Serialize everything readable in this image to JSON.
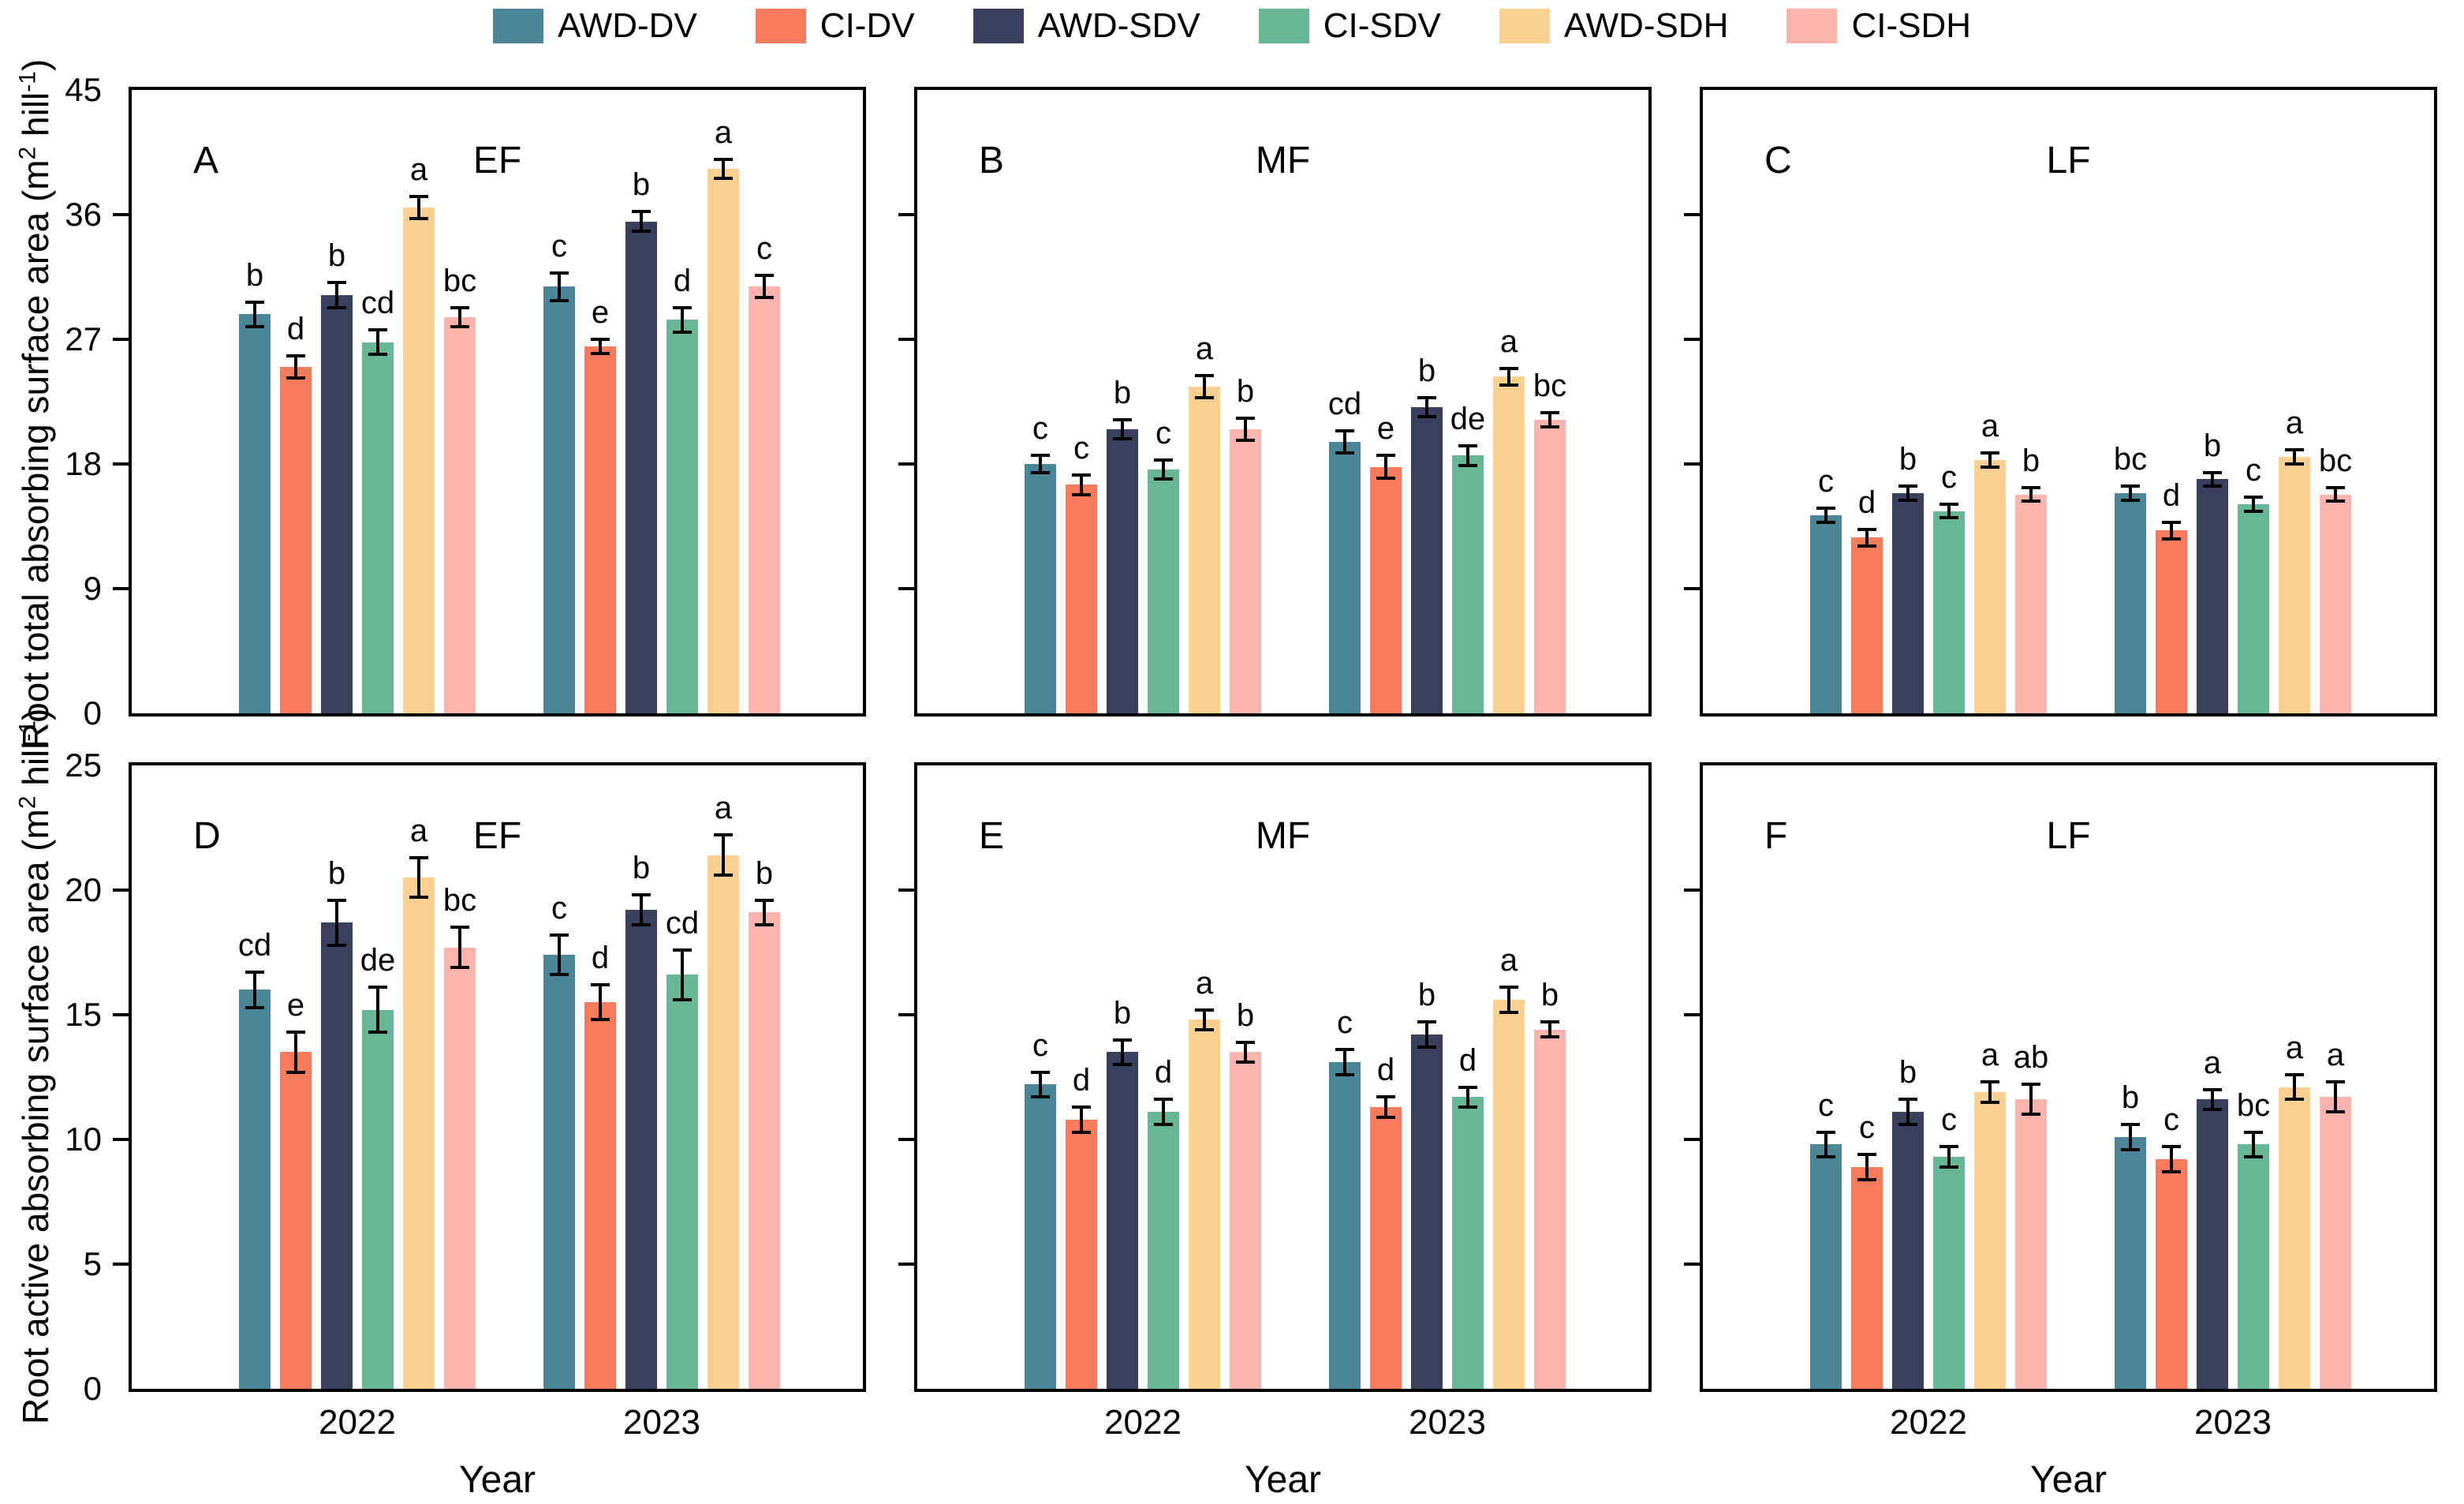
{
  "legend": {
    "items": [
      {
        "label": "AWD-DV",
        "color": "#4A8697"
      },
      {
        "label": "CI-DV",
        "color": "#FA7B5D"
      },
      {
        "label": "AWD-SDV",
        "color": "#3A3F5D"
      },
      {
        "label": "CI-SDV",
        "color": "#67B696"
      },
      {
        "label": "AWD-SDH",
        "color": "#FCD091"
      },
      {
        "label": "CI-SDH",
        "color": "#FDB3AD"
      }
    ]
  },
  "axes": {
    "xlabel": "Year",
    "categories": [
      "2022",
      "2023"
    ],
    "top_row": {
      "ylabel_parts": [
        [
          "Root total absorbing surface area (m",
          ""
        ],
        [
          "2",
          "sup"
        ],
        [
          " hill",
          ""
        ],
        [
          "-1",
          "sup"
        ],
        [
          ")",
          ""
        ]
      ],
      "ymax": 45,
      "yticks": [
        0,
        9,
        18,
        27,
        36,
        45
      ]
    },
    "bottom_row": {
      "ylabel_parts": [
        [
          "Root active absorbing surface area (m",
          ""
        ],
        [
          "2",
          "sup"
        ],
        [
          " hill",
          ""
        ],
        [
          "-1",
          "sup"
        ],
        [
          ")",
          ""
        ]
      ],
      "ymax": 25,
      "yticks": [
        0,
        5,
        10,
        15,
        20,
        25
      ]
    }
  },
  "chart_data": [
    {
      "type": "bar",
      "panel_label": "A",
      "group_label": "EF",
      "row": "top",
      "col": 0,
      "ymax": 45,
      "yticks": [
        0,
        9,
        18,
        27,
        36,
        45
      ],
      "show_ytick_labels": true,
      "categories": [
        "2022",
        "2023"
      ],
      "legend_position": "top-center-of-figure",
      "grid": false,
      "series": [
        {
          "name": "AWD-DV",
          "values": [
            28.8,
            30.8
          ],
          "errors": [
            0.9,
            1.0
          ],
          "letters": [
            "b",
            "c"
          ]
        },
        {
          "name": "CI-DV",
          "values": [
            25.0,
            26.5
          ],
          "errors": [
            0.8,
            0.5
          ],
          "letters": [
            "d",
            "e"
          ]
        },
        {
          "name": "AWD-SDV",
          "values": [
            30.2,
            35.5
          ],
          "errors": [
            0.9,
            0.7
          ],
          "letters": [
            "b",
            "b"
          ]
        },
        {
          "name": "CI-SDV",
          "values": [
            26.8,
            28.4
          ],
          "errors": [
            0.9,
            0.9
          ],
          "letters": [
            "cd",
            "d"
          ]
        },
        {
          "name": "AWD-SDH",
          "values": [
            36.5,
            39.3
          ],
          "errors": [
            0.8,
            0.7
          ],
          "letters": [
            "a",
            "a"
          ]
        },
        {
          "name": "CI-SDH",
          "values": [
            28.6,
            30.8
          ],
          "errors": [
            0.7,
            0.8
          ],
          "letters": [
            "bc",
            "c"
          ]
        }
      ]
    },
    {
      "type": "bar",
      "panel_label": "B",
      "group_label": "MF",
      "row": "top",
      "col": 1,
      "ymax": 45,
      "yticks": [
        0,
        9,
        18,
        27,
        36,
        45
      ],
      "show_ytick_labels": false,
      "categories": [
        "2022",
        "2023"
      ],
      "grid": false,
      "series": [
        {
          "name": "AWD-DV",
          "values": [
            18.0,
            19.6
          ],
          "errors": [
            0.6,
            0.8
          ],
          "letters": [
            "c",
            "cd"
          ]
        },
        {
          "name": "CI-DV",
          "values": [
            16.5,
            17.8
          ],
          "errors": [
            0.7,
            0.8
          ],
          "letters": [
            "c",
            "e"
          ]
        },
        {
          "name": "AWD-SDV",
          "values": [
            20.5,
            22.1
          ],
          "errors": [
            0.7,
            0.7
          ],
          "letters": [
            "b",
            "b"
          ]
        },
        {
          "name": "CI-SDV",
          "values": [
            17.6,
            18.6
          ],
          "errors": [
            0.7,
            0.7
          ],
          "letters": [
            "c",
            "de"
          ]
        },
        {
          "name": "AWD-SDH",
          "values": [
            23.6,
            24.3
          ],
          "errors": [
            0.8,
            0.6
          ],
          "letters": [
            "a",
            "a"
          ]
        },
        {
          "name": "CI-SDH",
          "values": [
            20.5,
            21.2
          ],
          "errors": [
            0.8,
            0.5
          ],
          "letters": [
            "b",
            "bc"
          ]
        }
      ]
    },
    {
      "type": "bar",
      "panel_label": "C",
      "group_label": "LF",
      "row": "top",
      "col": 2,
      "ymax": 45,
      "yticks": [
        0,
        9,
        18,
        27,
        36,
        45
      ],
      "show_ytick_labels": false,
      "categories": [
        "2022",
        "2023"
      ],
      "grid": false,
      "series": [
        {
          "name": "AWD-DV",
          "values": [
            14.3,
            15.9
          ],
          "errors": [
            0.5,
            0.5
          ],
          "letters": [
            "c",
            "bc"
          ]
        },
        {
          "name": "CI-DV",
          "values": [
            12.7,
            13.2
          ],
          "errors": [
            0.6,
            0.6
          ],
          "letters": [
            "d",
            "d"
          ]
        },
        {
          "name": "AWD-SDV",
          "values": [
            15.9,
            16.9
          ],
          "errors": [
            0.5,
            0.5
          ],
          "letters": [
            "b",
            "b"
          ]
        },
        {
          "name": "CI-SDV",
          "values": [
            14.6,
            15.1
          ],
          "errors": [
            0.5,
            0.5
          ],
          "letters": [
            "c",
            "c"
          ]
        },
        {
          "name": "AWD-SDH",
          "values": [
            18.3,
            18.5
          ],
          "errors": [
            0.5,
            0.5
          ],
          "letters": [
            "a",
            "a"
          ]
        },
        {
          "name": "CI-SDH",
          "values": [
            15.8,
            15.8
          ],
          "errors": [
            0.5,
            0.5
          ],
          "letters": [
            "b",
            "bc"
          ]
        }
      ]
    },
    {
      "type": "bar",
      "panel_label": "D",
      "group_label": "EF",
      "row": "bottom",
      "col": 0,
      "ymax": 25,
      "yticks": [
        0,
        5,
        10,
        15,
        20,
        25
      ],
      "show_ytick_labels": true,
      "categories": [
        "2022",
        "2023"
      ],
      "grid": false,
      "series": [
        {
          "name": "AWD-DV",
          "values": [
            16.0,
            17.4
          ],
          "errors": [
            0.7,
            0.8
          ],
          "letters": [
            "cd",
            "c"
          ]
        },
        {
          "name": "CI-DV",
          "values": [
            13.5,
            15.5
          ],
          "errors": [
            0.8,
            0.7
          ],
          "letters": [
            "e",
            "d"
          ]
        },
        {
          "name": "AWD-SDV",
          "values": [
            18.7,
            19.2
          ],
          "errors": [
            0.9,
            0.6
          ],
          "letters": [
            "b",
            "b"
          ]
        },
        {
          "name": "CI-SDV",
          "values": [
            15.2,
            16.6
          ],
          "errors": [
            0.9,
            1.0
          ],
          "letters": [
            "de",
            "cd"
          ]
        },
        {
          "name": "AWD-SDH",
          "values": [
            20.5,
            21.4
          ],
          "errors": [
            0.8,
            0.8
          ],
          "letters": [
            "a",
            "a"
          ]
        },
        {
          "name": "CI-SDH",
          "values": [
            17.7,
            19.1
          ],
          "errors": [
            0.8,
            0.5
          ],
          "letters": [
            "bc",
            "b"
          ]
        }
      ]
    },
    {
      "type": "bar",
      "panel_label": "E",
      "group_label": "MF",
      "row": "bottom",
      "col": 1,
      "ymax": 25,
      "yticks": [
        0,
        5,
        10,
        15,
        20,
        25
      ],
      "show_ytick_labels": false,
      "categories": [
        "2022",
        "2023"
      ],
      "grid": false,
      "series": [
        {
          "name": "AWD-DV",
          "values": [
            12.2,
            13.1
          ],
          "errors": [
            0.5,
            0.5
          ],
          "letters": [
            "c",
            "c"
          ]
        },
        {
          "name": "CI-DV",
          "values": [
            10.8,
            11.3
          ],
          "errors": [
            0.5,
            0.4
          ],
          "letters": [
            "d",
            "d"
          ]
        },
        {
          "name": "AWD-SDV",
          "values": [
            13.5,
            14.2
          ],
          "errors": [
            0.5,
            0.5
          ],
          "letters": [
            "b",
            "b"
          ]
        },
        {
          "name": "CI-SDV",
          "values": [
            11.1,
            11.7
          ],
          "errors": [
            0.5,
            0.4
          ],
          "letters": [
            "d",
            "d"
          ]
        },
        {
          "name": "AWD-SDH",
          "values": [
            14.8,
            15.6
          ],
          "errors": [
            0.4,
            0.5
          ],
          "letters": [
            "a",
            "a"
          ]
        },
        {
          "name": "CI-SDH",
          "values": [
            13.5,
            14.4
          ],
          "errors": [
            0.4,
            0.3
          ],
          "letters": [
            "b",
            "b"
          ]
        }
      ]
    },
    {
      "type": "bar",
      "panel_label": "F",
      "group_label": "LF",
      "row": "bottom",
      "col": 2,
      "ymax": 25,
      "yticks": [
        0,
        5,
        10,
        15,
        20,
        25
      ],
      "show_ytick_labels": false,
      "categories": [
        "2022",
        "2023"
      ],
      "grid": false,
      "series": [
        {
          "name": "AWD-DV",
          "values": [
            9.8,
            10.1
          ],
          "errors": [
            0.5,
            0.5
          ],
          "letters": [
            "c",
            "b"
          ]
        },
        {
          "name": "CI-DV",
          "values": [
            8.9,
            9.2
          ],
          "errors": [
            0.5,
            0.5
          ],
          "letters": [
            "c",
            "c"
          ]
        },
        {
          "name": "AWD-SDV",
          "values": [
            11.1,
            11.6
          ],
          "errors": [
            0.5,
            0.4
          ],
          "letters": [
            "b",
            "a"
          ]
        },
        {
          "name": "CI-SDV",
          "values": [
            9.3,
            9.8
          ],
          "errors": [
            0.4,
            0.5
          ],
          "letters": [
            "c",
            "bc"
          ]
        },
        {
          "name": "AWD-SDH",
          "values": [
            11.9,
            12.1
          ],
          "errors": [
            0.4,
            0.5
          ],
          "letters": [
            "a",
            "a"
          ]
        },
        {
          "name": "CI-SDH",
          "values": [
            11.6,
            11.7
          ],
          "errors": [
            0.6,
            0.6
          ],
          "letters": [
            "ab",
            "a"
          ]
        }
      ]
    }
  ]
}
